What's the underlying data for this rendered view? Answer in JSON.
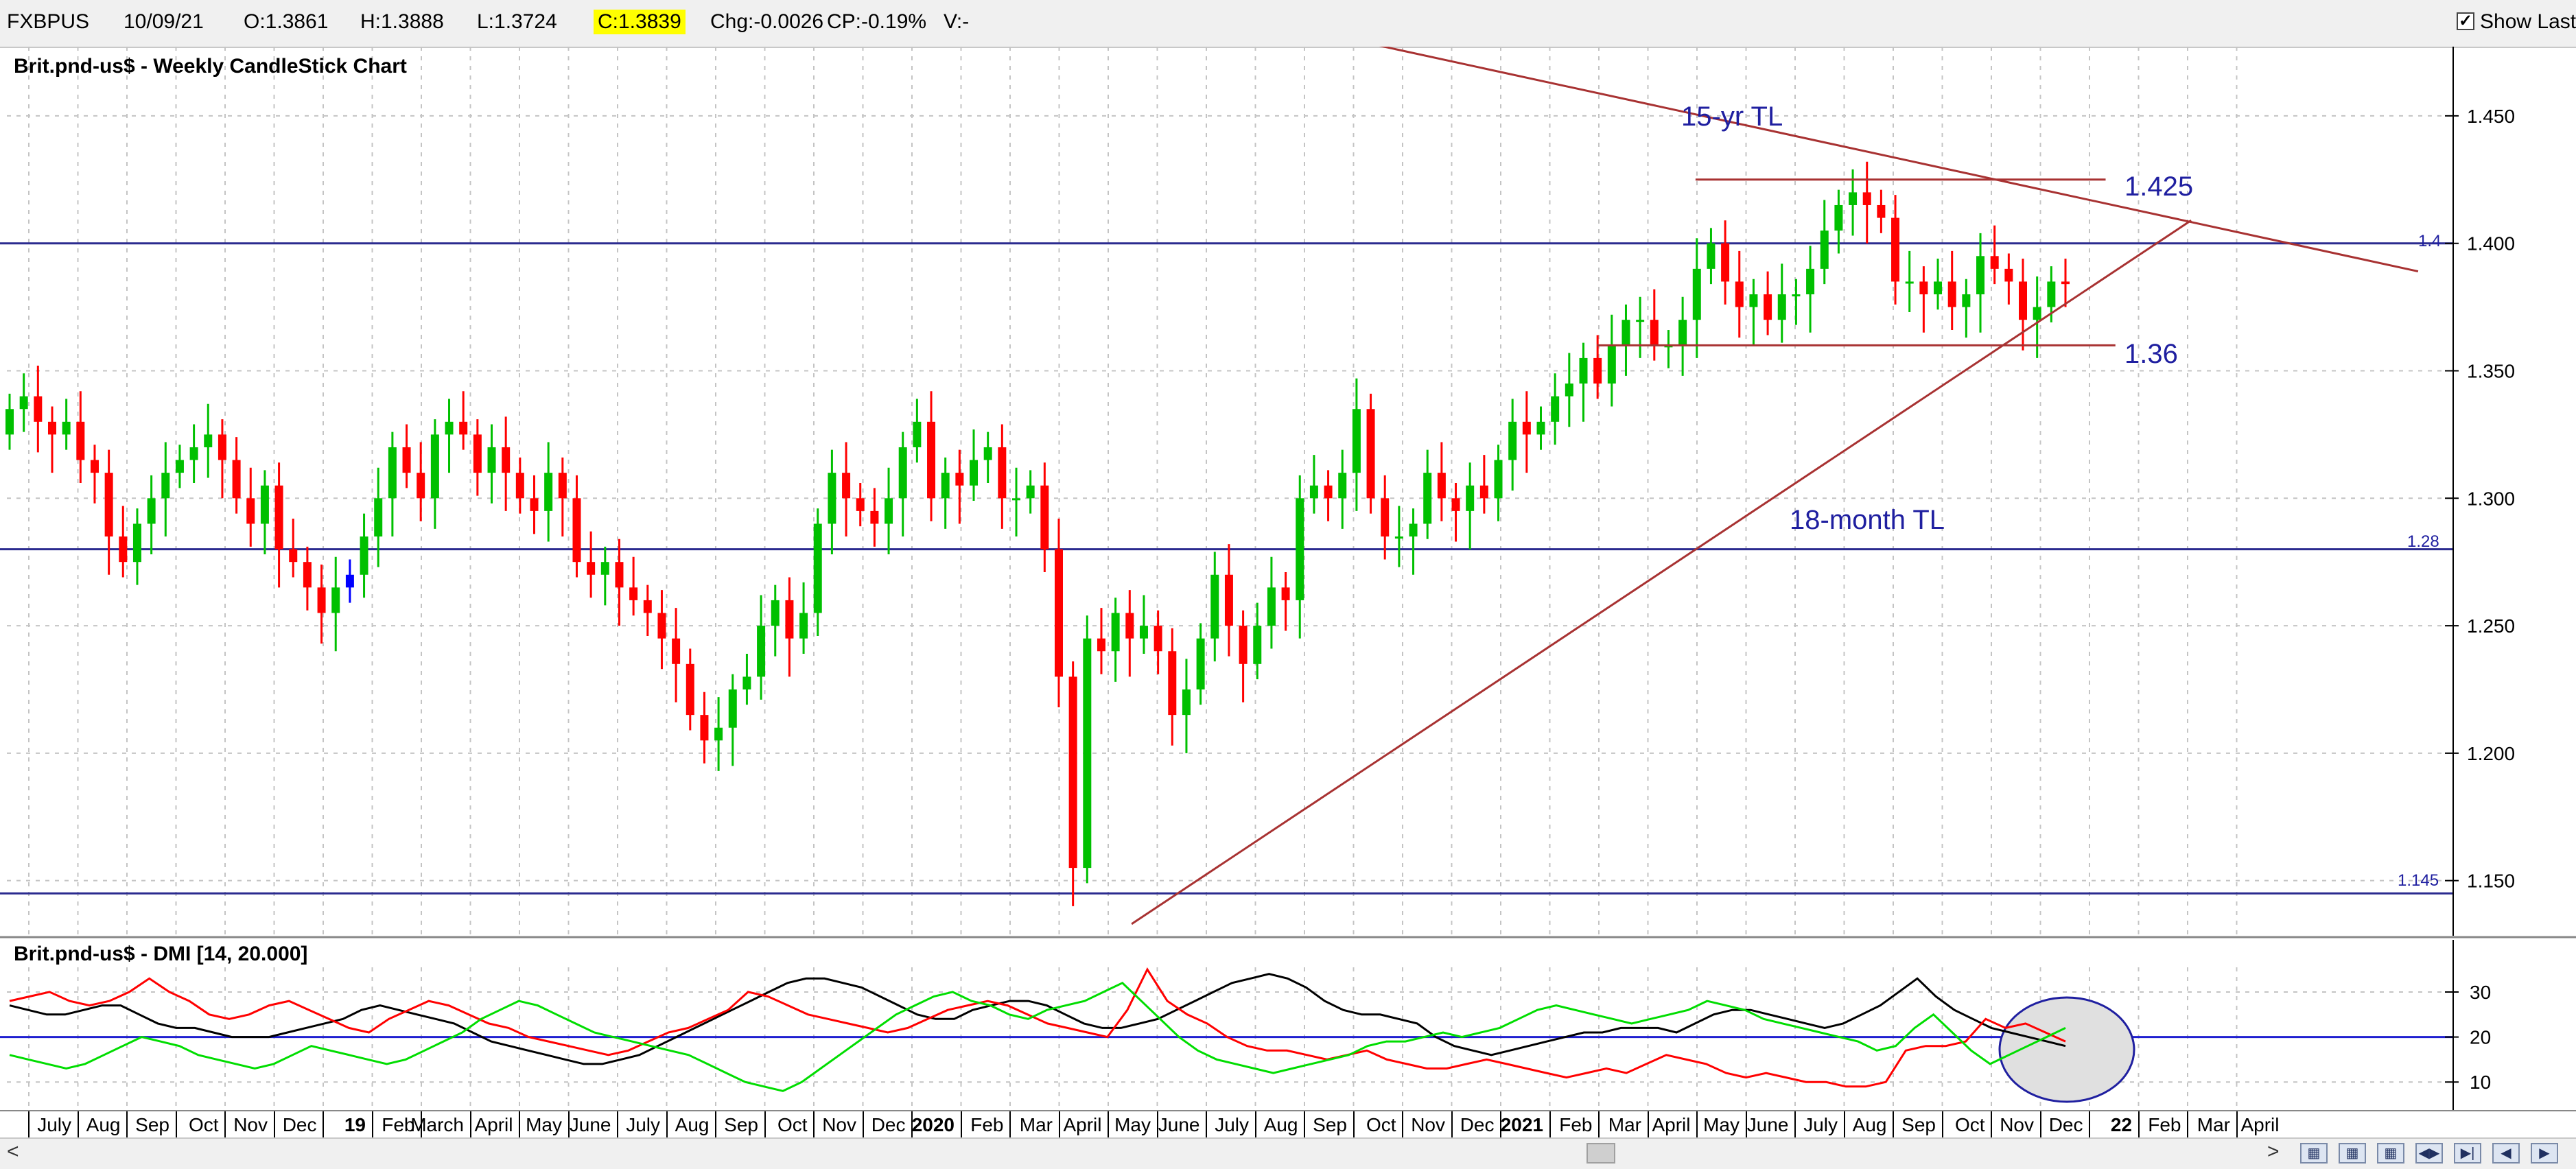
{
  "header": {
    "symbol": "FXBPUS",
    "date": "10/09/21",
    "open": "O:1.3861",
    "high": "H:1.3888",
    "low": "L:1.3724",
    "close": "C:1.3839",
    "change": "Chg:-0.0026",
    "change_pct": "CP:-0.19%",
    "volume": "V:-",
    "show_last_label": "Show Last",
    "show_last_checked": true
  },
  "chart_data": [
    {
      "type": "candlestick",
      "title": "Brit.pnd-us$ - Weekly CandleStick Chart",
      "ylim": [
        1.13,
        1.475
      ],
      "yticks": [
        "1.150",
        "1.200",
        "1.250",
        "1.300",
        "1.350",
        "1.400",
        "1.450"
      ],
      "up_color": "#00c000",
      "down_color": "#ff0000",
      "highlight_color": "#0000ff",
      "series_close": [
        1.335,
        1.34,
        1.33,
        1.325,
        1.33,
        1.315,
        1.31,
        1.285,
        1.275,
        1.29,
        1.3,
        1.31,
        1.315,
        1.32,
        1.325,
        1.315,
        1.3,
        1.29,
        1.305,
        1.28,
        1.275,
        1.265,
        1.255,
        1.265,
        1.27,
        1.285,
        1.3,
        1.32,
        1.31,
        1.3,
        1.325,
        1.33,
        1.325,
        1.31,
        1.32,
        1.31,
        1.3,
        1.295,
        1.31,
        1.3,
        1.275,
        1.27,
        1.275,
        1.265,
        1.26,
        1.255,
        1.245,
        1.235,
        1.215,
        1.205,
        1.21,
        1.225,
        1.23,
        1.25,
        1.26,
        1.245,
        1.255,
        1.29,
        1.31,
        1.3,
        1.295,
        1.29,
        1.3,
        1.32,
        1.33,
        1.3,
        1.31,
        1.305,
        1.315,
        1.32,
        1.3,
        1.3,
        1.305,
        1.28,
        1.23,
        1.155,
        1.245,
        1.24,
        1.255,
        1.245,
        1.25,
        1.24,
        1.215,
        1.225,
        1.245,
        1.27,
        1.25,
        1.235,
        1.25,
        1.265,
        1.26,
        1.3,
        1.305,
        1.3,
        1.31,
        1.335,
        1.3,
        1.285,
        1.285,
        1.29,
        1.31,
        1.3,
        1.295,
        1.305,
        1.3,
        1.315,
        1.33,
        1.325,
        1.33,
        1.34,
        1.345,
        1.355,
        1.345,
        1.36,
        1.37,
        1.37,
        1.36,
        1.36,
        1.37,
        1.39,
        1.4,
        1.385,
        1.375,
        1.38,
        1.37,
        1.38,
        1.38,
        1.39,
        1.405,
        1.415,
        1.42,
        1.415,
        1.41,
        1.385,
        1.385,
        1.38,
        1.385,
        1.375,
        1.38,
        1.395,
        1.39,
        1.385,
        1.37,
        1.375,
        1.385,
        1.384
      ],
      "highlight_index": 24,
      "horizontal_lines": [
        {
          "label": "1.4",
          "value": 1.4,
          "color": "#2b2b8f"
        },
        {
          "label": "1.28",
          "value": 1.28,
          "color": "#2b2b8f"
        },
        {
          "label": "1.145",
          "value": 1.145,
          "color": "#2b2b8f"
        }
      ],
      "trendlines": [
        {
          "name": "15-yr TL",
          "from": {
            "x": 0.5015,
            "y": 1.485
          },
          "to": {
            "x": 0.9387,
            "y": 1.389
          },
          "color": "#a83232"
        },
        {
          "name": "18-month TL",
          "from": {
            "x": 0.4393,
            "y": 1.133
          },
          "to": {
            "x": 0.8506,
            "y": 1.409
          },
          "color": "#a83232"
        },
        {
          "name": "1.425",
          "from": {
            "x": 0.6582,
            "y": 1.425
          },
          "to": {
            "x": 0.8174,
            "y": 1.425
          },
          "color": "#a83232"
        },
        {
          "name": "1.36",
          "from": {
            "x": 0.6199,
            "y": 1.36
          },
          "to": {
            "x": 0.8212,
            "y": 1.36
          },
          "color": "#a83232"
        }
      ],
      "annotations": [
        "15-yr TL",
        "1.425",
        "1.36",
        "18-month TL"
      ]
    },
    {
      "type": "line",
      "title": "Brit.pnd-us$ - DMI [14, 20.000]",
      "ylim": [
        5,
        37
      ],
      "yticks": [
        "10",
        "20",
        "30"
      ],
      "reference_line": {
        "value": 20,
        "color": "#1f1fd0"
      },
      "series": [
        {
          "color": "#000000",
          "values": [
            27,
            26,
            25,
            25,
            26,
            27,
            27,
            25,
            23,
            22,
            22,
            21,
            20,
            20,
            20,
            21,
            22,
            23,
            24,
            26,
            27,
            26,
            25,
            24,
            23,
            21,
            19,
            18,
            17,
            16,
            15,
            14,
            14,
            15,
            16,
            18,
            20,
            22,
            24,
            26,
            28,
            30,
            32,
            33,
            33,
            32,
            31,
            29,
            27,
            25,
            24,
            24,
            26,
            27,
            28,
            28,
            27,
            25,
            23,
            22,
            22,
            23,
            24,
            26,
            28,
            30,
            32,
            33,
            34,
            33,
            31,
            28,
            26,
            25,
            25,
            24,
            23,
            20,
            18,
            17,
            16,
            17,
            18,
            19,
            20,
            21,
            21,
            22,
            22,
            22,
            21,
            23,
            25,
            26,
            26,
            25,
            24,
            23,
            22,
            23,
            25,
            27,
            30,
            33,
            29,
            26,
            24,
            22,
            21,
            20,
            19,
            18
          ]
        },
        {
          "color": "#ff0000",
          "values": [
            28,
            29,
            30,
            28,
            27,
            28,
            30,
            33,
            30,
            28,
            25,
            24,
            25,
            27,
            28,
            26,
            24,
            22,
            21,
            24,
            26,
            28,
            27,
            25,
            23,
            22,
            20,
            19,
            18,
            17,
            16,
            17,
            19,
            21,
            22,
            24,
            26,
            30,
            29,
            27,
            25,
            24,
            23,
            22,
            21,
            22,
            24,
            26,
            27,
            28,
            27,
            25,
            23,
            22,
            21,
            20,
            26,
            35,
            28,
            25,
            23,
            20,
            18,
            17,
            17,
            16,
            15,
            16,
            17,
            15,
            14,
            13,
            13,
            14,
            15,
            14,
            13,
            12,
            11,
            12,
            13,
            12,
            14,
            16,
            15,
            14,
            12,
            11,
            12,
            11,
            10,
            10,
            9,
            9,
            10,
            17,
            18,
            18,
            19,
            24,
            22,
            23,
            21,
            19
          ]
        },
        {
          "color": "#00dd00",
          "values": [
            16,
            15,
            14,
            13,
            14,
            16,
            18,
            20,
            19,
            18,
            16,
            15,
            14,
            13,
            14,
            16,
            18,
            17,
            16,
            15,
            14,
            15,
            17,
            19,
            21,
            24,
            26,
            28,
            27,
            25,
            23,
            21,
            20,
            19,
            18,
            17,
            16,
            14,
            12,
            10,
            9,
            8,
            10,
            13,
            16,
            19,
            22,
            25,
            27,
            29,
            30,
            28,
            27,
            25,
            24,
            26,
            27,
            28,
            30,
            32,
            28,
            24,
            20,
            17,
            15,
            14,
            13,
            12,
            13,
            14,
            15,
            16,
            18,
            19,
            19,
            20,
            21,
            20,
            21,
            22,
            24,
            26,
            27,
            26,
            25,
            24,
            23,
            24,
            25,
            26,
            28,
            27,
            26,
            24,
            23,
            22,
            21,
            20,
            19,
            17,
            18,
            22,
            25,
            21,
            17,
            14,
            16,
            18,
            20,
            22
          ]
        }
      ],
      "highlight": {
        "shape": "ellipse",
        "color": "#1f1fa0"
      }
    }
  ],
  "x_axis_labels": [
    "July",
    "Aug",
    "Sep",
    "Oct",
    "Nov",
    "Dec",
    "19",
    "Feb",
    "March",
    "April",
    "May",
    "June",
    "July",
    "Aug",
    "Sep",
    "Oct",
    "Nov",
    "Dec",
    "2020",
    "Feb",
    "Mar",
    "April",
    "May",
    "June",
    "July",
    "Aug",
    "Sep",
    "Oct",
    "Nov",
    "Dec",
    "2021",
    "Feb",
    "Mar",
    "April",
    "May",
    "June",
    "July",
    "Aug",
    "Sep",
    "Oct",
    "Nov",
    "Dec",
    "22",
    "Feb",
    "Mar",
    "April"
  ],
  "x_axis_bold": [
    "19",
    "2020",
    "2021",
    "22"
  ],
  "scrollbar": {
    "left_arrow": "<",
    "right_arrow": ">",
    "buttons": [
      "chart-icon-1",
      "chart-icon-2",
      "chart-icon-3",
      "nav-double-left-icon",
      "nav-right-end-icon",
      "nav-left-icon",
      "nav-right-icon"
    ]
  }
}
